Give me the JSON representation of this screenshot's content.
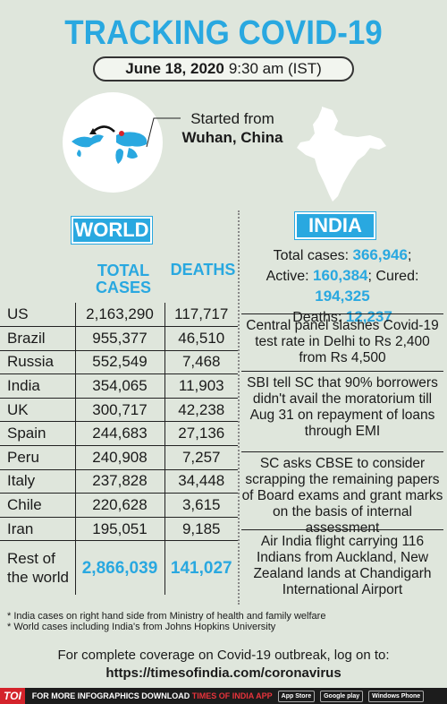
{
  "title": "TRACKING COVID-19",
  "date": {
    "date": "June 18, 2020",
    "time": "9:30 am (IST)"
  },
  "origin": {
    "line1": "Started from",
    "line2": "Wuhan, China"
  },
  "world": {
    "label": "WORLD",
    "headers": {
      "cases": "TOTAL CASES",
      "deaths": "DEATHS"
    },
    "rows": [
      {
        "country": "US",
        "cases": "2,163,290",
        "deaths": "117,717"
      },
      {
        "country": "Brazil",
        "cases": "955,377",
        "deaths": "46,510"
      },
      {
        "country": "Russia",
        "cases": "552,549",
        "deaths": "7,468"
      },
      {
        "country": "India",
        "cases": "354,065",
        "deaths": "11,903"
      },
      {
        "country": "UK",
        "cases": "300,717",
        "deaths": "42,238"
      },
      {
        "country": "Spain",
        "cases": "244,683",
        "deaths": "27,136"
      },
      {
        "country": "Peru",
        "cases": "240,908",
        "deaths": "7,257"
      },
      {
        "country": "Italy",
        "cases": "237,828",
        "deaths": "34,448"
      },
      {
        "country": "Chile",
        "cases": "220,628",
        "deaths": "3,615"
      },
      {
        "country": "Iran",
        "cases": "195,051",
        "deaths": "9,185"
      }
    ],
    "rest": {
      "line1": "Rest of",
      "line2": "the world",
      "cases": "2,866,039",
      "deaths": "141,027"
    }
  },
  "india": {
    "label": "INDIA",
    "total_label": "Total cases:",
    "total": "366,946",
    "active_label": "Active:",
    "active": "160,384",
    "cured_label": "; Cured:",
    "cured": "194,325",
    "deaths_label": "Deaths:",
    "deaths": "12,237",
    "news": [
      "Central panel slashes Covid-19 test rate in Delhi to Rs 2,400 from Rs 4,500",
      "SBI tell SC that 90% borrowers didn't avail the moratorium till Aug 31 on repayment of loans through EMI",
      "SC asks CBSE to consider scrapping the remaining papers of Board exams and grant marks on the basis of internal assessment",
      "Air India flight carrying 116 Indians from Auckland, New Zealand lands at Chandigarh International Airport"
    ]
  },
  "footnotes": [
    "* India cases on right hand side from Ministry of health and family welfare",
    "* World cases including India's from Johns Hopkins University"
  ],
  "coverage": {
    "text": "For complete coverage on Covid-19 outbreak, log on to:",
    "url": "https://timesofindia.com/coronavirus"
  },
  "footer": {
    "logo": "TOI",
    "text": "FOR MORE INFOGRAPHICS DOWNLOAD",
    "app": "TIMES OF INDIA APP",
    "stores": [
      "App Store",
      "Google play",
      "Windows Phone"
    ]
  },
  "colors": {
    "accent": "#29a8e0",
    "background": "#dfe6dc",
    "brand_red": "#d4232b"
  }
}
